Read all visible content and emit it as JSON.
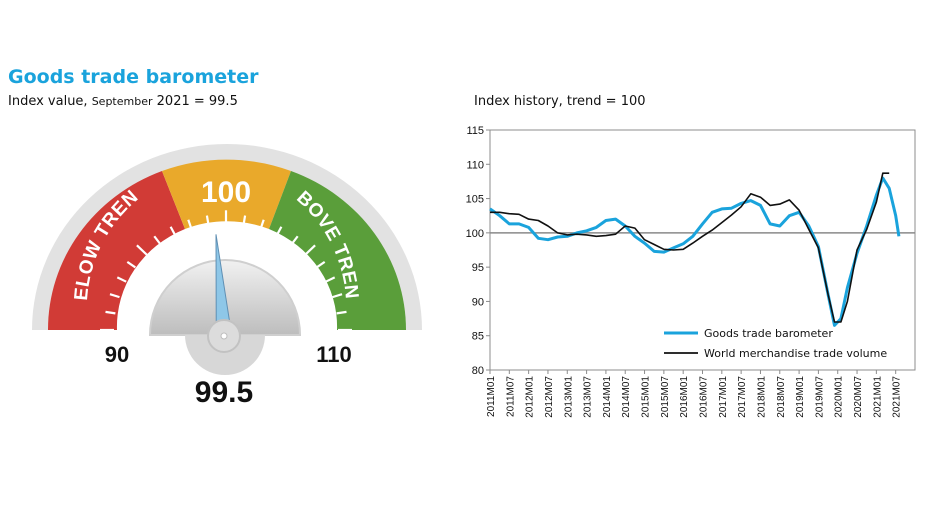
{
  "header": {
    "title": "Goods trade barometer",
    "subtitle_main": "Index value, ",
    "subtitle_small": "September",
    "subtitle_value": " 2021 = 99.5"
  },
  "gauge": {
    "value": 99.5,
    "value_label": "99.5",
    "min_label": "90",
    "max_label": "110",
    "center_label": "100",
    "below_label": "BELOW TREND",
    "above_label": "ABOVE TREND",
    "colors": {
      "below": "#d13b36",
      "center": "#e9a92b",
      "above": "#5a9e3a",
      "needle": "#8ec7e8"
    }
  },
  "chart_title": "Index history, trend = 100",
  "chart_data": {
    "type": "line",
    "x_tick_labels": [
      "2011M01",
      "2011M07",
      "2012M01",
      "2012M07",
      "2013M01",
      "2013M07",
      "2014M01",
      "2014M07",
      "2015M01",
      "2015M07",
      "2016M01",
      "2016M07",
      "2017M01",
      "2017M07",
      "2018M01",
      "2018M07",
      "2019M01",
      "2019M07",
      "2020M01",
      "2020M07",
      "2021M01",
      "2021M07"
    ],
    "y_ticks": [
      80,
      85,
      90,
      95,
      100,
      105,
      110,
      115
    ],
    "ylim": [
      80,
      115
    ],
    "reference_line": 100,
    "legend_position": "bottom",
    "series": [
      {
        "name": "Goods trade barometer",
        "color": "#1aa3dc",
        "points": [
          [
            0,
            103.5
          ],
          [
            3,
            102.5
          ],
          [
            6,
            101.3
          ],
          [
            9,
            101.3
          ],
          [
            12,
            100.8
          ],
          [
            15,
            99.2
          ],
          [
            18,
            99.0
          ],
          [
            21,
            99.4
          ],
          [
            24,
            99.5
          ],
          [
            27,
            100.0
          ],
          [
            30,
            100.3
          ],
          [
            33,
            100.8
          ],
          [
            36,
            101.8
          ],
          [
            39,
            102.0
          ],
          [
            42,
            101.0
          ],
          [
            45,
            99.5
          ],
          [
            48,
            98.5
          ],
          [
            51,
            97.3
          ],
          [
            54,
            97.2
          ],
          [
            57,
            97.8
          ],
          [
            60,
            98.4
          ],
          [
            63,
            99.5
          ],
          [
            66,
            101.3
          ],
          [
            69,
            103.0
          ],
          [
            72,
            103.5
          ],
          [
            75,
            103.6
          ],
          [
            78,
            104.3
          ],
          [
            81,
            104.7
          ],
          [
            84,
            104.0
          ],
          [
            87,
            101.3
          ],
          [
            90,
            101.0
          ],
          [
            93,
            102.5
          ],
          [
            96,
            103.0
          ],
          [
            99,
            101.0
          ],
          [
            102,
            98.0
          ],
          [
            105,
            91.0
          ],
          [
            107,
            86.5
          ],
          [
            109,
            87.5
          ],
          [
            111,
            92.0
          ],
          [
            114,
            97.0
          ],
          [
            117,
            101.0
          ],
          [
            120,
            105.5
          ],
          [
            122,
            108.0
          ],
          [
            124,
            106.5
          ],
          [
            126,
            102.5
          ],
          [
            127,
            99.5
          ]
        ]
      },
      {
        "name": "World merchandise trade volume",
        "color": "#111111",
        "points": [
          [
            0,
            103.0
          ],
          [
            3,
            103.0
          ],
          [
            6,
            102.8
          ],
          [
            9,
            102.7
          ],
          [
            12,
            102.0
          ],
          [
            15,
            101.8
          ],
          [
            18,
            101.0
          ],
          [
            21,
            100.0
          ],
          [
            24,
            99.7
          ],
          [
            27,
            99.8
          ],
          [
            30,
            99.7
          ],
          [
            33,
            99.5
          ],
          [
            36,
            99.6
          ],
          [
            39,
            99.8
          ],
          [
            42,
            101.0
          ],
          [
            45,
            100.7
          ],
          [
            48,
            99.0
          ],
          [
            51,
            98.3
          ],
          [
            54,
            97.6
          ],
          [
            57,
            97.5
          ],
          [
            60,
            97.6
          ],
          [
            63,
            98.5
          ],
          [
            66,
            99.5
          ],
          [
            69,
            100.4
          ],
          [
            72,
            101.5
          ],
          [
            75,
            102.6
          ],
          [
            78,
            103.8
          ],
          [
            81,
            105.7
          ],
          [
            84,
            105.2
          ],
          [
            87,
            104.0
          ],
          [
            90,
            104.2
          ],
          [
            93,
            104.8
          ],
          [
            96,
            103.3
          ],
          [
            99,
            100.5
          ],
          [
            102,
            97.8
          ],
          [
            105,
            91.0
          ],
          [
            107,
            87.0
          ],
          [
            109,
            87.0
          ],
          [
            111,
            90.0
          ],
          [
            114,
            97.5
          ],
          [
            117,
            100.5
          ],
          [
            120,
            104.5
          ],
          [
            122,
            108.7
          ],
          [
            124,
            108.7
          ]
        ]
      }
    ]
  }
}
